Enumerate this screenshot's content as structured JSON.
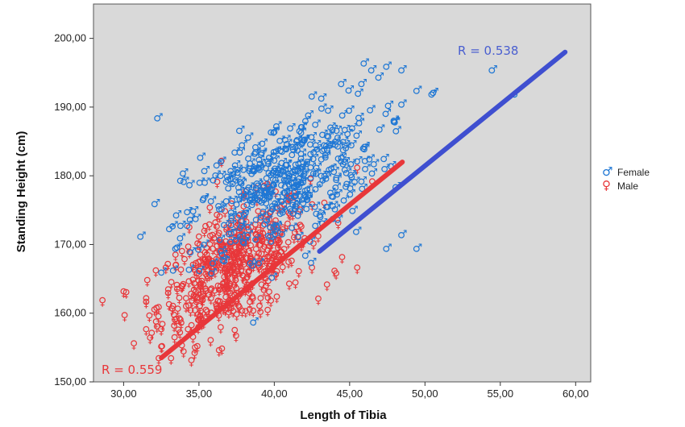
{
  "chart_data": {
    "type": "scatter",
    "xlabel": "Length of Tibia",
    "ylabel": "Standing Height (cm)",
    "xlim": [
      28,
      61
    ],
    "ylim": [
      150,
      205
    ],
    "x_ticks": [
      "30,00",
      "35,00",
      "40,00",
      "45,00",
      "50,00",
      "55,00",
      "60,00"
    ],
    "y_ticks": [
      "150,00",
      "160,00",
      "170,00",
      "180,00",
      "190,00",
      "200,00"
    ],
    "grid": false,
    "plot_background": "#d9d9d9",
    "legend_position": "right",
    "series": [
      {
        "name": "Female",
        "symbol": "♂",
        "color": "#1f77d4",
        "cluster": {
          "x_mean": 40.5,
          "x_sd": 3.2,
          "y_mean": 179,
          "y_sd": 5.5,
          "count": 430
        },
        "points": [
          [
            32.3,
            188.5
          ],
          [
            46,
            196.5
          ],
          [
            47.5,
            196
          ],
          [
            46.5,
            195.5
          ],
          [
            48.5,
            195.5
          ],
          [
            44.5,
            193.5
          ],
          [
            49.5,
            192.5
          ],
          [
            50.5,
            192
          ],
          [
            54.5,
            195.5
          ],
          [
            56,
            192
          ],
          [
            48.5,
            190.5
          ],
          [
            48,
            188
          ],
          [
            45.5,
            172
          ],
          [
            48.5,
            171.5
          ],
          [
            47.5,
            169.5
          ],
          [
            49.5,
            169.5
          ],
          [
            42.5,
            167.5
          ],
          [
            33.5,
            169.5
          ],
          [
            34.5,
            169
          ],
          [
            34,
            180.5
          ]
        ],
        "fit_line": {
          "x": [
            43,
            59.3
          ],
          "y": [
            169,
            198
          ]
        },
        "r_label": "R = 0.538"
      },
      {
        "name": "Male",
        "symbol": "♀",
        "color": "#e8373a",
        "cluster": {
          "x_mean": 37.3,
          "x_sd": 2.5,
          "y_mean": 166.5,
          "y_sd": 5.0,
          "count": 520
        },
        "points": [
          [
            30,
            163
          ],
          [
            31.5,
            162
          ],
          [
            31.5,
            157.5
          ],
          [
            32.5,
            155
          ],
          [
            34.5,
            153
          ],
          [
            45.5,
            166.5
          ],
          [
            45.5,
            181
          ],
          [
            46.5,
            179
          ],
          [
            42.5,
            166.5
          ],
          [
            44,
            166
          ],
          [
            44.5,
            168
          ],
          [
            43.5,
            164
          ],
          [
            35,
            171
          ],
          [
            36.5,
            182
          ],
          [
            32.5,
            157.5
          ],
          [
            31.5,
            161.5
          ]
        ],
        "fit_line": {
          "x": [
            32.5,
            48.5
          ],
          "y": [
            153.5,
            182
          ]
        },
        "r_label": "R = 0.559"
      }
    ]
  }
}
